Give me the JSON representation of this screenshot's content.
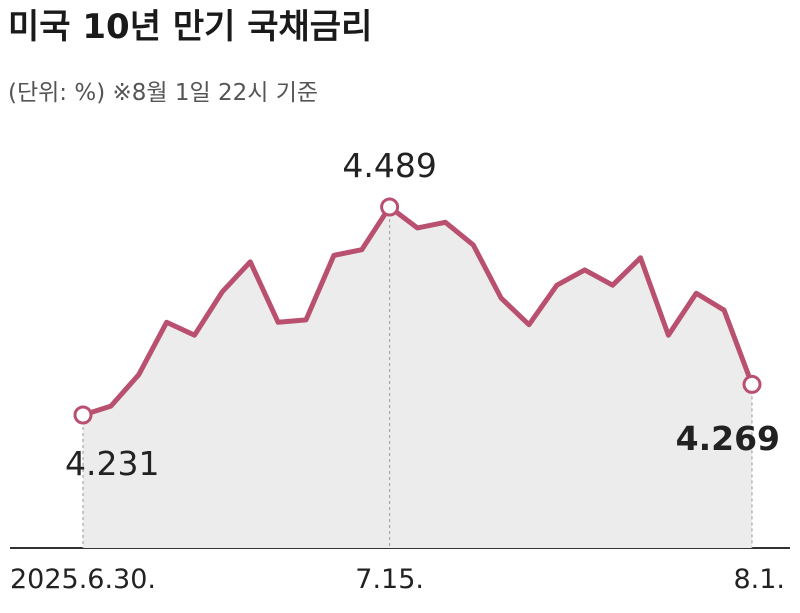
{
  "chart_data": {
    "type": "line",
    "title": "미국 10년 만기 국채금리",
    "subtitle": "(단위: %) ※8월 1일 22시 기준",
    "categories": [
      "2025.6.30.",
      null,
      null,
      null,
      null,
      null,
      null,
      null,
      null,
      null,
      null,
      "7.15.",
      null,
      null,
      null,
      null,
      null,
      null,
      null,
      null,
      null,
      null,
      null,
      null,
      "8.1."
    ],
    "values": [
      4.231,
      4.242,
      4.281,
      4.346,
      4.33,
      4.384,
      4.421,
      4.346,
      4.349,
      4.429,
      4.436,
      4.489,
      4.463,
      4.47,
      4.442,
      4.376,
      4.343,
      4.392,
      4.411,
      4.392,
      4.426,
      4.33,
      4.382,
      4.361,
      4.269
    ],
    "value_labels": [
      "4.231",
      null,
      null,
      null,
      null,
      null,
      null,
      null,
      null,
      null,
      null,
      "4.489",
      null,
      null,
      null,
      null,
      null,
      null,
      null,
      null,
      null,
      null,
      null,
      null,
      "4.269"
    ],
    "color": "#b9506f",
    "area_color": "#ececec"
  }
}
